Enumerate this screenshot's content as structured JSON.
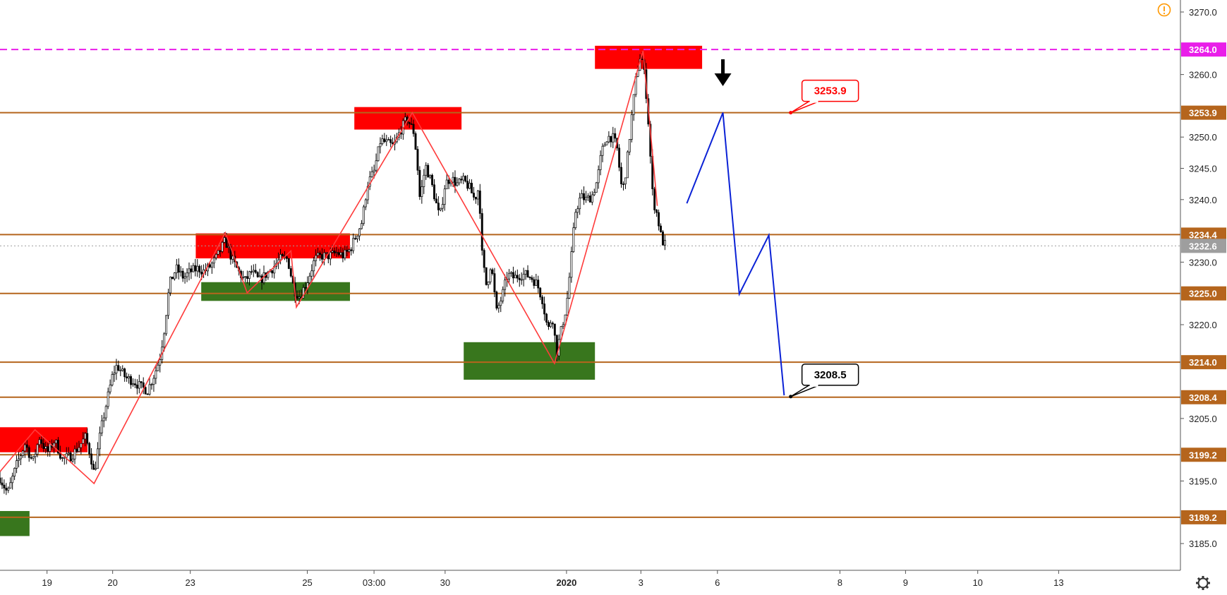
{
  "chart_data": {
    "type": "candlestick",
    "x_ticks": [
      "19",
      "20",
      "23",
      "25",
      "03:00",
      "30",
      "2020",
      "3",
      "6",
      "8",
      "9",
      "10",
      "13"
    ],
    "y_ticks": [
      "3270.0",
      "3260.0",
      "3250.0",
      "3245.0",
      "3240.0",
      "3230.0",
      "3220.0",
      "3205.0",
      "3195.0",
      "3185.0"
    ],
    "ylim": [
      3180.6,
      3272.0
    ],
    "last_price": {
      "value": 3232.6,
      "label": "3232.6",
      "color": "#9e9e9e"
    },
    "dashed_level": {
      "value": 3264.0,
      "label": "3264.0",
      "color": "#e91ee9"
    },
    "levels": [
      {
        "value": 3253.9,
        "label": "3253.9"
      },
      {
        "value": 3234.4,
        "label": "3234.4"
      },
      {
        "value": 3225.0,
        "label": "3225.0"
      },
      {
        "value": 3214.0,
        "label": "3214.0"
      },
      {
        "value": 3208.4,
        "label": "3208.4"
      },
      {
        "value": 3199.2,
        "label": "3199.2"
      },
      {
        "value": 3189.2,
        "label": "3189.2"
      }
    ],
    "level_color": "#b5651d",
    "zones": [
      {
        "kind": "resistance",
        "x": [
          0,
          8
        ],
        "y": [
          3199.6,
          3203.6
        ]
      },
      {
        "kind": "support",
        "x": [
          0,
          2.7
        ],
        "y": [
          3186.2,
          3190.2
        ]
      },
      {
        "kind": "resistance",
        "x": [
          17.9,
          32.0
        ],
        "y": [
          3230.6,
          3234.6
        ]
      },
      {
        "kind": "support",
        "x": [
          18.4,
          32.0
        ],
        "y": [
          3223.8,
          3226.8
        ]
      },
      {
        "kind": "resistance",
        "x": [
          32.4,
          42.2
        ],
        "y": [
          3251.2,
          3254.8
        ]
      },
      {
        "kind": "support",
        "x": [
          42.4,
          54.4
        ],
        "y": [
          3211.2,
          3217.2
        ]
      },
      {
        "kind": "resistance",
        "x": [
          54.4,
          64.2
        ],
        "y": [
          3260.9,
          3264.6
        ]
      }
    ],
    "zone_colors": {
      "resistance": "#ff0000",
      "support": "#38761d"
    },
    "zigzag": {
      "color": "#ff3b3b",
      "points": [
        [
          0,
          3196.5
        ],
        [
          3.2,
          3203.2
        ],
        [
          8.6,
          3194.6
        ],
        [
          20.6,
          3234.7
        ],
        [
          22.6,
          3225.1
        ],
        [
          26.6,
          3231.8
        ],
        [
          27.1,
          3222.8
        ],
        [
          37.7,
          3253.9
        ],
        [
          50.7,
          3213.8
        ],
        [
          58.8,
          3263.8
        ],
        [
          60.1,
          3239.0
        ]
      ]
    },
    "projection": {
      "color": "#0b22d6",
      "points": [
        [
          62.8,
          3239.4
        ],
        [
          66.1,
          3253.9
        ],
        [
          67.6,
          3224.9
        ],
        [
          70.3,
          3234.3
        ],
        [
          71.7,
          3208.7
        ]
      ]
    },
    "callouts": [
      {
        "label": "3253.9",
        "value": 3253.9,
        "color": "#ff0000",
        "x": 72.3
      },
      {
        "label": "3208.5",
        "value": 3208.5,
        "color": "#000000",
        "x": 72.3
      }
    ],
    "arrow": {
      "label": "down-arrow",
      "x": 66.1,
      "value": 3258.6,
      "color": "#000000"
    },
    "candle_path": [
      [
        0,
        3195.5
      ],
      [
        0.7,
        3193.0
      ],
      [
        1.5,
        3197.5
      ],
      [
        2.3,
        3201.0
      ],
      [
        3.0,
        3198.0
      ],
      [
        3.6,
        3202.0
      ],
      [
        4.3,
        3199.5
      ],
      [
        5.0,
        3201.5
      ],
      [
        5.7,
        3198.5
      ],
      [
        6.5,
        3199.0
      ],
      [
        7.2,
        3200.5
      ],
      [
        7.8,
        3202.0
      ],
      [
        8.3,
        3199.0
      ],
      [
        8.6,
        3196.0
      ],
      [
        9.2,
        3203.0
      ],
      [
        9.8,
        3208.0
      ],
      [
        10.3,
        3212.0
      ],
      [
        10.7,
        3213.5
      ],
      [
        11.5,
        3211.5
      ],
      [
        12.2,
        3211.0
      ],
      [
        12.9,
        3210.0
      ],
      [
        13.5,
        3209.5
      ],
      [
        14.1,
        3212.0
      ],
      [
        14.6,
        3214.5
      ],
      [
        15.0,
        3219.0
      ],
      [
        15.5,
        3226.5
      ],
      [
        16.1,
        3229.0
      ],
      [
        16.8,
        3227.5
      ],
      [
        17.4,
        3228.5
      ],
      [
        18.1,
        3229.0
      ],
      [
        18.7,
        3228.5
      ],
      [
        19.3,
        3229.5
      ],
      [
        19.9,
        3231.0
      ],
      [
        20.6,
        3233.5
      ],
      [
        21.2,
        3230.5
      ],
      [
        21.8,
        3228.5
      ],
      [
        22.4,
        3227.0
      ],
      [
        23.0,
        3228.5
      ],
      [
        23.7,
        3227.0
      ],
      [
        24.3,
        3228.0
      ],
      [
        24.9,
        3229.0
      ],
      [
        25.6,
        3230.5
      ],
      [
        26.3,
        3230.5
      ],
      [
        26.9,
        3225.5
      ],
      [
        27.4,
        3224.5
      ],
      [
        28.1,
        3227.0
      ],
      [
        28.8,
        3230.5
      ],
      [
        29.4,
        3231.0
      ],
      [
        30.1,
        3231.0
      ],
      [
        30.8,
        3231.5
      ],
      [
        31.4,
        3231.0
      ],
      [
        32.0,
        3232.0
      ],
      [
        32.5,
        3234.0
      ],
      [
        33.1,
        3236.5
      ],
      [
        33.6,
        3242.5
      ],
      [
        34.2,
        3244.5
      ],
      [
        34.8,
        3249.5
      ],
      [
        35.4,
        3249.0
      ],
      [
        36.0,
        3248.5
      ],
      [
        36.6,
        3251.0
      ],
      [
        37.2,
        3253.0
      ],
      [
        37.8,
        3251.0
      ],
      [
        38.1,
        3247.0
      ],
      [
        38.4,
        3240.0
      ],
      [
        38.9,
        3245.5
      ],
      [
        39.4,
        3243.0
      ],
      [
        39.8,
        3240.0
      ],
      [
        40.2,
        3237.0
      ],
      [
        40.7,
        3242.5
      ],
      [
        41.2,
        3243.5
      ],
      [
        41.8,
        3242.5
      ],
      [
        42.4,
        3243.0
      ],
      [
        42.9,
        3242.0
      ],
      [
        43.4,
        3240.0
      ],
      [
        43.8,
        3242.0
      ],
      [
        44.1,
        3230.5
      ],
      [
        44.5,
        3226.0
      ],
      [
        44.9,
        3230.0
      ],
      [
        45.4,
        3222.0
      ],
      [
        45.9,
        3224.5
      ],
      [
        46.4,
        3228.0
      ],
      [
        47.0,
        3227.5
      ],
      [
        47.6,
        3228.0
      ],
      [
        48.1,
        3228.0
      ],
      [
        48.6,
        3227.5
      ],
      [
        49.1,
        3226.5
      ],
      [
        49.6,
        3224.0
      ],
      [
        50.1,
        3219.0
      ],
      [
        50.5,
        3221.5
      ],
      [
        50.9,
        3215.5
      ],
      [
        51.3,
        3219.0
      ],
      [
        51.8,
        3223.0
      ],
      [
        52.2,
        3230.0
      ],
      [
        52.6,
        3238.0
      ],
      [
        53.1,
        3240.5
      ],
      [
        53.6,
        3240.0
      ],
      [
        54.1,
        3240.5
      ],
      [
        54.6,
        3243.0
      ],
      [
        55.0,
        3247.5
      ],
      [
        55.5,
        3250.0
      ],
      [
        56.0,
        3250.0
      ],
      [
        56.4,
        3248.5
      ],
      [
        56.9,
        3241.0
      ],
      [
        57.3,
        3245.5
      ],
      [
        57.8,
        3254.0
      ],
      [
        58.2,
        3260.0
      ],
      [
        58.6,
        3263.5
      ],
      [
        59.0,
        3259.0
      ],
      [
        59.3,
        3252.0
      ],
      [
        59.7,
        3240.0
      ],
      [
        60.1,
        3237.5
      ],
      [
        60.5,
        3233.5
      ],
      [
        60.9,
        3232.6
      ]
    ],
    "grid": false,
    "candle_color": "#000000"
  },
  "ui": {
    "alert_icon": "exclamation-circle-icon",
    "alert_color": "#ff9800",
    "settings_icon": "gear-icon"
  }
}
